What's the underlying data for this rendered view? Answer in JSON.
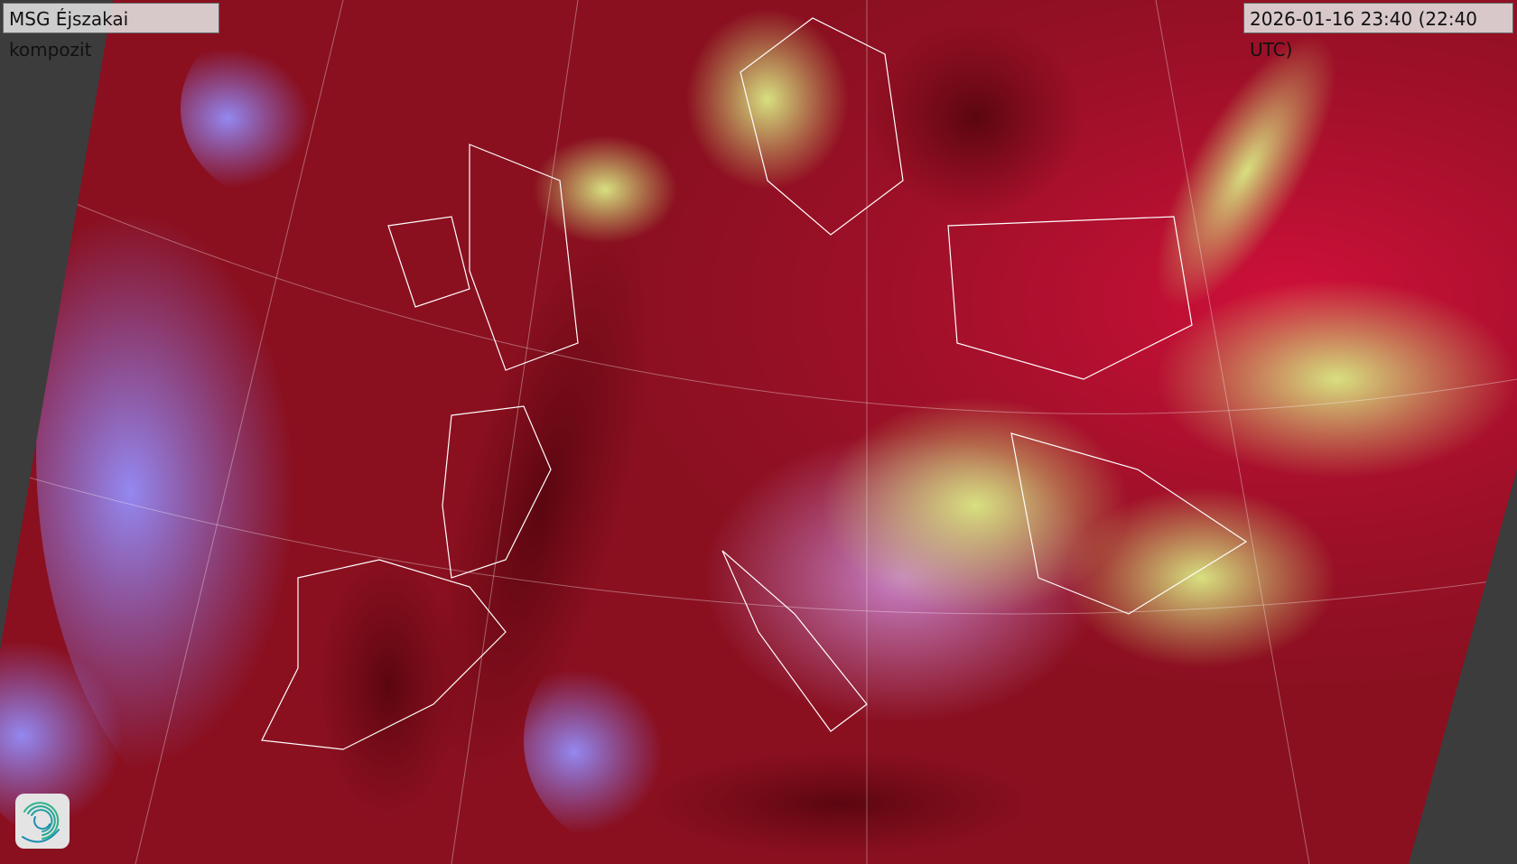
{
  "title": "MSG Éjszakai kompozit",
  "timestamp": "2026-01-16 23:40 (22:40 UTC)",
  "logo": {
    "icon": "swirl-logo-icon",
    "colors": [
      "#2bb38a",
      "#1f8fb0"
    ]
  },
  "colors": {
    "background": "#3c3c3c",
    "red_air": "#b0102a",
    "cloud_purple": "#8070e8",
    "fog_yellow": "#c8d878",
    "dark_red": "#6a0610",
    "borders": "#ffffff"
  }
}
